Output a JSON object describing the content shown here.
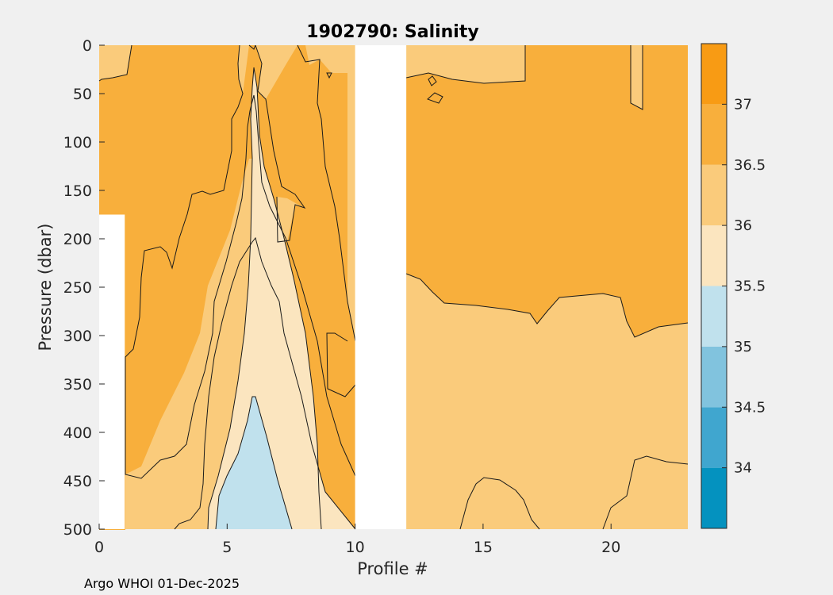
{
  "chart_data": {
    "type": "contour",
    "title": "1902790:  Salinity",
    "xlabel": "Profile #",
    "ylabel": "Pressure (dbar)",
    "xlim": [
      0,
      23
    ],
    "ylim": [
      500,
      0
    ],
    "xticks": [
      "0",
      "5",
      "10",
      "15",
      "20"
    ],
    "xtick_values": [
      0,
      5,
      10,
      15,
      20
    ],
    "yticks": [
      "0",
      "50",
      "100",
      "150",
      "200",
      "250",
      "300",
      "350",
      "400",
      "450",
      "500"
    ],
    "ytick_values": [
      0,
      50,
      100,
      150,
      200,
      250,
      300,
      350,
      400,
      450,
      500
    ],
    "colorbar": {
      "range": [
        33.5,
        37.5
      ],
      "ticks": [
        "34",
        "34.5",
        "35",
        "35.5",
        "36",
        "36.5",
        "37"
      ],
      "tick_values": [
        34,
        34.5,
        35,
        35.5,
        36,
        36.5,
        37
      ],
      "levels": [
        {
          "lo": 33.5,
          "hi": 34.0,
          "color": "#0492bf"
        },
        {
          "lo": 34.0,
          "hi": 34.5,
          "color": "#40a6cf"
        },
        {
          "lo": 34.5,
          "hi": 35.0,
          "color": "#81c3de"
        },
        {
          "lo": 35.0,
          "hi": 35.5,
          "color": "#c0e1ed"
        },
        {
          "lo": 35.5,
          "hi": 36.0,
          "color": "#fbe5bf"
        },
        {
          "lo": 36.0,
          "hi": 36.5,
          "color": "#facb7b"
        },
        {
          "lo": 36.5,
          "hi": 37.0,
          "color": "#f8af3c"
        },
        {
          "lo": 37.0,
          "hi": 37.5,
          "color": "#f89b14"
        }
      ]
    },
    "missing_profiles": [
      {
        "x_from": 10,
        "x_to": 12,
        "p_from": 0,
        "p_to": 500
      },
      {
        "x_from": 0,
        "x_to": 1,
        "p_from": 175,
        "p_to": 500
      }
    ],
    "salinity_regions": [
      {
        "band": 6,
        "description": "surface 0-80 dbar and profiles 10-23 below 240 dbar",
        "value_range": [
          36.0,
          36.5
        ]
      },
      {
        "band": 7,
        "description": "upper layer 50-300 dbar, profiles 0-9 and 12-23",
        "value_range": [
          36.5,
          37.0
        ]
      },
      {
        "band": 5,
        "description": "tongue centered near profile 6 from 85 dbar down to 500 dbar",
        "value_range": [
          35.5,
          36.0
        ]
      },
      {
        "band": 4,
        "description": "core near profile 6 from 365 dbar to 500 dbar",
        "value_range": [
          35.0,
          35.5
        ]
      }
    ]
  },
  "footer": "Argo WHOI 01-Dec-2025"
}
